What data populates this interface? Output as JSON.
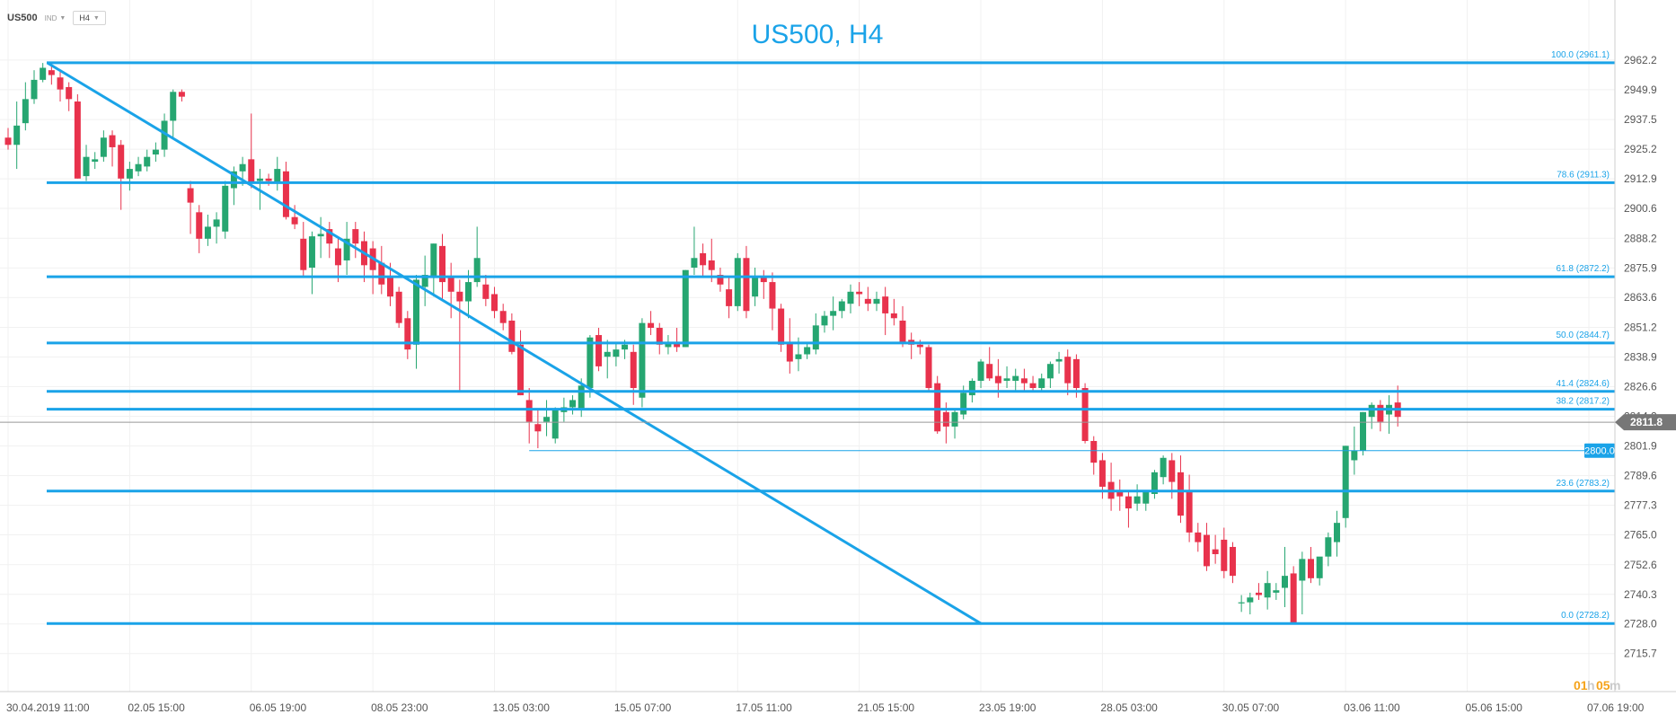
{
  "toolbar": {
    "symbol": "US500",
    "type": "IND",
    "timeframe": "H4"
  },
  "chart_data": {
    "type": "candlestick",
    "title": "US500, H4",
    "ylim": [
      2710,
      2970
    ],
    "yticks": [
      "2962.2",
      "2949.9",
      "2937.5",
      "2925.2",
      "2912.9",
      "2900.6",
      "2888.2",
      "2875.9",
      "2863.6",
      "2851.2",
      "2838.9",
      "2826.6",
      "2814.2",
      "2801.9",
      "2789.6",
      "2777.3",
      "2765.0",
      "2752.6",
      "2740.3",
      "2728.0",
      "2715.7"
    ],
    "xticks": [
      {
        "label": "30.04.2019  11:00",
        "index": 0
      },
      {
        "label": "02.05  15:00",
        "index": 14
      },
      {
        "label": "06.05  19:00",
        "index": 28
      },
      {
        "label": "08.05  23:00",
        "index": 42
      },
      {
        "label": "13.05  03:00",
        "index": 56
      },
      {
        "label": "15.05  07:00",
        "index": 70
      },
      {
        "label": "17.05  11:00",
        "index": 84
      },
      {
        "label": "21.05  15:00",
        "index": 98
      },
      {
        "label": "23.05  19:00",
        "index": 112
      },
      {
        "label": "28.05  03:00",
        "index": 126
      },
      {
        "label": "30.05  07:00",
        "index": 140
      },
      {
        "label": "03.06  11:00",
        "index": 154
      },
      {
        "label": "05.06  15:00",
        "index": 168
      },
      {
        "label": "07.06  19:00",
        "index": 182
      }
    ],
    "fib_levels": [
      {
        "label": "100.0 (2961.1)",
        "value": 2961.1
      },
      {
        "label": "78.6 (2911.3)",
        "value": 2911.3
      },
      {
        "label": "61.8 (2872.2)",
        "value": 2872.2
      },
      {
        "label": "50.0 (2844.7)",
        "value": 2844.7
      },
      {
        "label": "41.4 (2824.6)",
        "value": 2824.6
      },
      {
        "label": "38.2 (2817.2)",
        "value": 2817.2
      },
      {
        "label": "23.6 (2783.2)",
        "value": 2783.2
      },
      {
        "label": "0.0 (2728.2)",
        "value": 2728.2
      }
    ],
    "horizontal_line": {
      "label": "2800.0",
      "value": 2800.0,
      "from_index": 60
    },
    "trendline": {
      "from": [
        4.5,
        2961.1
      ],
      "to": [
        112,
        2728.2
      ]
    },
    "current_price": {
      "label": "2811.8",
      "value": 2811.8
    },
    "countdown": {
      "hours": "01",
      "h": "h",
      "minutes": "05",
      "m": "m"
    },
    "candles": [
      [
        2930,
        2934,
        2927,
        2925
      ],
      [
        2927,
        2945,
        2935,
        2917
      ],
      [
        2936,
        2953,
        2946,
        2933
      ],
      [
        2946,
        2958,
        2954,
        2944
      ],
      [
        2954,
        2961,
        2959,
        2953
      ],
      [
        2958,
        2961,
        2956,
        2952
      ],
      [
        2955,
        2958,
        2950,
        2945
      ],
      [
        2951,
        2953,
        2946,
        2941
      ],
      [
        2945,
        2948,
        2913,
        2913
      ],
      [
        2914,
        2927,
        2922,
        2912
      ],
      [
        2920,
        2924,
        2921,
        2917
      ],
      [
        2922,
        2933,
        2930,
        2920
      ],
      [
        2931,
        2933,
        2926,
        2918
      ],
      [
        2927,
        2929,
        2913,
        2900
      ],
      [
        2913,
        2920,
        2917,
        2908
      ],
      [
        2916,
        2922,
        2919,
        2914
      ],
      [
        2918,
        2925,
        2922,
        2916
      ],
      [
        2923,
        2928,
        2925,
        2920
      ],
      [
        2925,
        2940,
        2937,
        2922
      ],
      [
        2937,
        2950,
        2949,
        2930
      ],
      [
        2949,
        2950,
        2947,
        2945
      ],
      [
        2909,
        2912,
        2903,
        2890
      ],
      [
        2899,
        2902,
        2888,
        2882
      ],
      [
        2888,
        2898,
        2893,
        2885
      ],
      [
        2893,
        2899,
        2896,
        2886
      ],
      [
        2891,
        2912,
        2910,
        2888
      ],
      [
        2909,
        2918,
        2916,
        2902
      ],
      [
        2916,
        2922,
        2919,
        2910
      ],
      [
        2921,
        2940,
        2911,
        2909
      ],
      [
        2912,
        2917,
        2913,
        2900
      ],
      [
        2913,
        2915,
        2912,
        2910
      ],
      [
        2911,
        2922,
        2917,
        2908
      ],
      [
        2916,
        2920,
        2897,
        2896
      ],
      [
        2897,
        2902,
        2894,
        2892
      ],
      [
        2888,
        2895,
        2875,
        2872
      ],
      [
        2876,
        2891,
        2889,
        2865
      ],
      [
        2889,
        2897,
        2890,
        2880
      ],
      [
        2892,
        2895,
        2886,
        2880
      ],
      [
        2884,
        2888,
        2877,
        2870
      ],
      [
        2879,
        2895,
        2888,
        2873
      ],
      [
        2892,
        2895,
        2886,
        2880
      ],
      [
        2887,
        2891,
        2877,
        2870
      ],
      [
        2884,
        2887,
        2875,
        2865
      ],
      [
        2878,
        2885,
        2869,
        2865
      ],
      [
        2872,
        2878,
        2864,
        2860
      ],
      [
        2866,
        2868,
        2853,
        2851
      ],
      [
        2855,
        2858,
        2842,
        2838
      ],
      [
        2844,
        2873,
        2871,
        2834
      ],
      [
        2868,
        2881,
        2873,
        2860
      ],
      [
        2872,
        2886,
        2886,
        2864
      ],
      [
        2885,
        2890,
        2870,
        2862
      ],
      [
        2872,
        2878,
        2866,
        2855
      ],
      [
        2866,
        2871,
        2862,
        2825
      ],
      [
        2862,
        2875,
        2870,
        2855
      ],
      [
        2870,
        2893,
        2880,
        2868
      ],
      [
        2869,
        2873,
        2863,
        2860
      ],
      [
        2865,
        2868,
        2858,
        2855
      ],
      [
        2858,
        2861,
        2853,
        2850
      ],
      [
        2854,
        2857,
        2841,
        2840
      ],
      [
        2844,
        2850,
        2823,
        2823
      ],
      [
        2821,
        2826,
        2812,
        2803
      ],
      [
        2811,
        2817,
        2808,
        2801
      ],
      [
        2812,
        2821,
        2814,
        2806
      ],
      [
        2805,
        2818,
        2817,
        2803
      ],
      [
        2816,
        2822,
        2818,
        2812
      ],
      [
        2818,
        2823,
        2821,
        2815
      ],
      [
        2817,
        2830,
        2827,
        2814
      ],
      [
        2826,
        2848,
        2847,
        2822
      ],
      [
        2848,
        2851,
        2835,
        2833
      ],
      [
        2839,
        2846,
        2841,
        2830
      ],
      [
        2839,
        2845,
        2842,
        2835
      ],
      [
        2842,
        2846,
        2844,
        2838
      ],
      [
        2841,
        2844,
        2826,
        2819
      ],
      [
        2822,
        2855,
        2853,
        2818
      ],
      [
        2853,
        2858,
        2851,
        2848
      ],
      [
        2851,
        2853,
        2844,
        2840
      ],
      [
        2843,
        2848,
        2845,
        2840
      ],
      [
        2845,
        2851,
        2843,
        2841
      ],
      [
        2843,
        2875,
        2875,
        2843
      ],
      [
        2876,
        2893,
        2880,
        2873
      ],
      [
        2882,
        2886,
        2877,
        2872
      ],
      [
        2879,
        2888,
        2875,
        2870
      ],
      [
        2873,
        2876,
        2869,
        2866
      ],
      [
        2867,
        2872,
        2860,
        2855
      ],
      [
        2860,
        2882,
        2880,
        2858
      ],
      [
        2880,
        2885,
        2858,
        2855
      ],
      [
        2864,
        2876,
        2872,
        2860
      ],
      [
        2872,
        2875,
        2870,
        2863
      ],
      [
        2870,
        2874,
        2859,
        2850
      ],
      [
        2859,
        2861,
        2844,
        2841
      ],
      [
        2845,
        2855,
        2837,
        2832
      ],
      [
        2838,
        2847,
        2840,
        2833
      ],
      [
        2840,
        2845,
        2843,
        2838
      ],
      [
        2842,
        2857,
        2852,
        2840
      ],
      [
        2852,
        2858,
        2856,
        2849
      ],
      [
        2856,
        2864,
        2858,
        2850
      ],
      [
        2858,
        2863,
        2862,
        2855
      ],
      [
        2861,
        2869,
        2866,
        2857
      ],
      [
        2866,
        2870,
        2865,
        2860
      ],
      [
        2863,
        2868,
        2861,
        2858
      ],
      [
        2861,
        2866,
        2863,
        2858
      ],
      [
        2864,
        2868,
        2857,
        2848
      ],
      [
        2857,
        2863,
        2855,
        2852
      ],
      [
        2854,
        2860,
        2845,
        2843
      ],
      [
        2846,
        2849,
        2844,
        2838
      ],
      [
        2844,
        2846,
        2843,
        2840
      ],
      [
        2843,
        2844,
        2826,
        2825
      ],
      [
        2828,
        2831,
        2808,
        2807
      ],
      [
        2816,
        2820,
        2810,
        2803
      ],
      [
        2810,
        2817,
        2816,
        2805
      ],
      [
        2815,
        2827,
        2824,
        2813
      ],
      [
        2823,
        2830,
        2829,
        2820
      ],
      [
        2829,
        2838,
        2837,
        2826
      ],
      [
        2836,
        2843,
        2830,
        2829
      ],
      [
        2831,
        2838,
        2828,
        2822
      ],
      [
        2829,
        2835,
        2830,
        2826
      ],
      [
        2829,
        2834,
        2831,
        2825
      ],
      [
        2830,
        2834,
        2828,
        2825
      ],
      [
        2828,
        2831,
        2826,
        2825
      ],
      [
        2826,
        2832,
        2830,
        2825
      ],
      [
        2830,
        2837,
        2836,
        2826
      ],
      [
        2837,
        2841,
        2838,
        2832
      ],
      [
        2839,
        2842,
        2828,
        2823
      ],
      [
        2838,
        2840,
        2826,
        2822
      ],
      [
        2826,
        2828,
        2804,
        2803
      ],
      [
        2804,
        2806,
        2795,
        2790
      ],
      [
        2796,
        2799,
        2785,
        2780
      ],
      [
        2787,
        2795,
        2780,
        2775
      ],
      [
        2783,
        2788,
        2781,
        2775
      ],
      [
        2781,
        2783,
        2776,
        2768
      ],
      [
        2778,
        2786,
        2781,
        2775
      ],
      [
        2778,
        2783,
        2783,
        2775
      ],
      [
        2782,
        2792,
        2791,
        2780
      ],
      [
        2789,
        2798,
        2797,
        2786
      ],
      [
        2796,
        2799,
        2787,
        2780
      ],
      [
        2791,
        2798,
        2773,
        2770
      ],
      [
        2783,
        2790,
        2766,
        2762
      ],
      [
        2766,
        2770,
        2762,
        2758
      ],
      [
        2765,
        2770,
        2752,
        2750
      ],
      [
        2759,
        2765,
        2757,
        2753
      ],
      [
        2763,
        2768,
        2750,
        2747
      ],
      [
        2760,
        2762,
        2748,
        2745
      ],
      [
        2737,
        2740,
        2737,
        2733
      ],
      [
        2737,
        2741,
        2739,
        2732
      ],
      [
        2741,
        2745,
        2740,
        2738
      ],
      [
        2739,
        2750,
        2745,
        2734
      ],
      [
        2741,
        2745,
        2742,
        2738
      ],
      [
        2743,
        2760,
        2748,
        2735
      ],
      [
        2749,
        2752,
        2728,
        2728
      ],
      [
        2746,
        2758,
        2755,
        2732
      ],
      [
        2755,
        2760,
        2747,
        2745
      ],
      [
        2747,
        2755,
        2756,
        2744
      ],
      [
        2756,
        2766,
        2764,
        2752
      ],
      [
        2762,
        2775,
        2770,
        2756
      ],
      [
        2772,
        2802,
        2802,
        2768
      ],
      [
        2796,
        2810,
        2800,
        2790
      ],
      [
        2800,
        2816,
        2816,
        2798
      ],
      [
        2814,
        2820,
        2819,
        2809
      ],
      [
        2819,
        2821,
        2812,
        2808
      ],
      [
        2815,
        2823,
        2819,
        2807
      ],
      [
        2820,
        2827,
        2814,
        2810
      ]
    ]
  }
}
